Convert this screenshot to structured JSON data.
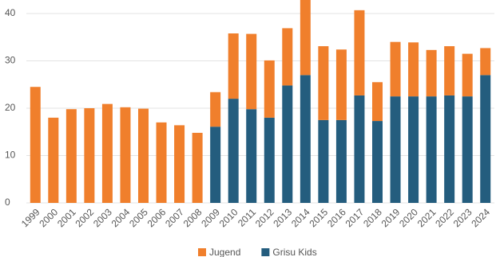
{
  "chart_data": {
    "type": "stacked_bar",
    "categories": [
      "1999",
      "2000",
      "2001",
      "2002",
      "2003",
      "2004",
      "2005",
      "2006",
      "2007",
      "2008",
      "2009",
      "2010",
      "2011",
      "2012",
      "2013",
      "2014",
      "2015",
      "2016",
      "2017",
      "2018",
      "2019",
      "2020",
      "2021",
      "2022",
      "2023",
      "2024"
    ],
    "series": [
      {
        "name": "Grisu Kids",
        "color": "#245d7e",
        "values": [
          null,
          null,
          null,
          null,
          null,
          null,
          null,
          null,
          null,
          null,
          16.1,
          22,
          19.8,
          18,
          24.8,
          27,
          17.5,
          17.5,
          22.7,
          17.3,
          22.5,
          22.5,
          22.5,
          22.7,
          22.5,
          27
        ]
      },
      {
        "name": "Jugend",
        "color": "#f07f2c",
        "values": [
          24.5,
          18,
          19.8,
          20,
          20.9,
          20.2,
          19.9,
          17,
          16.4,
          14.8,
          7.3,
          13.8,
          15.9,
          12.1,
          12.1,
          16,
          15.6,
          14.9,
          18,
          8.2,
          11.5,
          11.4,
          9.8,
          10.4,
          9.0,
          5.7
        ]
      }
    ],
    "legend_order": [
      "Jugend",
      "Grisu Kids"
    ],
    "ylim": [
      0,
      43
    ],
    "yticks": [
      0,
      10,
      20,
      30,
      40
    ],
    "grid": true
  }
}
